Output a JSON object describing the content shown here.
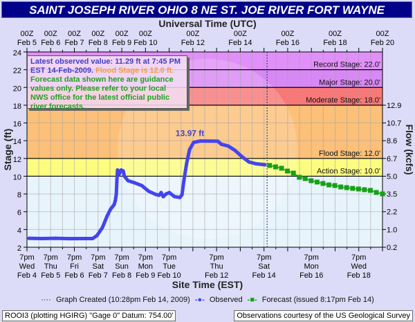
{
  "chart_data": {
    "type": "line",
    "title": "SAINT JOSEPH RIVER OHIO 8 NE ST. JOE RIVER FORT WAYNE",
    "top_axis_title": "Universal Time (UTC)",
    "xlabel": "Site Time (EST)",
    "ylabel": "Stage (ft)",
    "y2label": "Flow (kcfs)",
    "x_units": "days since 00Z Feb 5",
    "xlim": [
      0,
      15
    ],
    "ylim": [
      2,
      24
    ],
    "grid": true,
    "y_ticks": [
      2,
      4,
      6,
      8,
      10,
      12,
      14,
      16,
      18,
      20,
      22,
      24
    ],
    "y2_ticks": [
      {
        "stage": 2,
        "label": "0.2"
      },
      {
        "stage": 4,
        "label": "1.0"
      },
      {
        "stage": 6,
        "label": "2.2"
      },
      {
        "stage": 8,
        "label": "3.5"
      },
      {
        "stage": 10,
        "label": "5.0"
      },
      {
        "stage": 12,
        "label": "6.7"
      },
      {
        "stage": 14,
        "label": "8.6"
      },
      {
        "stage": 16,
        "label": "10.7"
      },
      {
        "stage": 18,
        "label": "12.9"
      }
    ],
    "top_ticks": [
      {
        "x": 0,
        "line1": "00Z",
        "line2": "Feb 5"
      },
      {
        "x": 1,
        "line1": "00Z",
        "line2": "Feb 6"
      },
      {
        "x": 2,
        "line1": "00Z",
        "line2": "Feb 7"
      },
      {
        "x": 3,
        "line1": "00Z",
        "line2": "Feb 8"
      },
      {
        "x": 4,
        "line1": "00Z",
        "line2": "Feb 9"
      },
      {
        "x": 5,
        "line1": "00Z",
        "line2": "Feb 10"
      },
      {
        "x": 7,
        "line1": "00Z",
        "line2": "Feb 12"
      },
      {
        "x": 9,
        "line1": "00Z",
        "line2": "Feb 14"
      },
      {
        "x": 11,
        "line1": "00Z",
        "line2": "Feb 16"
      },
      {
        "x": 13,
        "line1": "00Z",
        "line2": "Feb 18"
      },
      {
        "x": 15,
        "line1": "00Z",
        "line2": "Feb 20"
      }
    ],
    "bottom_ticks": [
      {
        "x": 0,
        "line1": "7pm",
        "line2": "Wed",
        "line3": "Feb 4"
      },
      {
        "x": 1,
        "line1": "7pm",
        "line2": "Thu",
        "line3": "Feb 5"
      },
      {
        "x": 2,
        "line1": "7pm",
        "line2": "Fri",
        "line3": "Feb 6"
      },
      {
        "x": 3,
        "line1": "7pm",
        "line2": "Sat",
        "line3": "Feb 7"
      },
      {
        "x": 4,
        "line1": "7pm",
        "line2": "Sun",
        "line3": "Feb 8"
      },
      {
        "x": 5,
        "line1": "7pm",
        "line2": "Mon",
        "line3": "Feb 9"
      },
      {
        "x": 6,
        "line1": "7pm",
        "line2": "Tue",
        "line3": "Feb 10"
      },
      {
        "x": 8,
        "line1": "7pm",
        "line2": "Thu",
        "line3": "Feb 12"
      },
      {
        "x": 10,
        "line1": "7pm",
        "line2": "Sat",
        "line3": "Feb 14"
      },
      {
        "x": 12,
        "line1": "7pm",
        "line2": "Mon",
        "line3": "Feb 16"
      },
      {
        "x": 14,
        "line1": "7pm",
        "line2": "Wed",
        "line3": "Feb 18"
      }
    ],
    "stage_bands": [
      {
        "name": "record",
        "from": 22,
        "to": 24,
        "color": "#e090f8",
        "label": "Record Stage: 22.0'",
        "line": 22
      },
      {
        "name": "major",
        "from": 20,
        "to": 22,
        "color": "#d888f4",
        "label": "Major Stage: 20.0'",
        "line": 20
      },
      {
        "name": "moderate",
        "from": 18,
        "to": 20,
        "color": "#f87878",
        "label": "Moderate Stage: 18.0'",
        "line": 18
      },
      {
        "name": "flood",
        "from": 12,
        "to": 18,
        "color": "#fcc078",
        "label": "Flood Stage: 12.0'",
        "line": 12
      },
      {
        "name": "action",
        "from": 10,
        "to": 12,
        "color": "#fcfc80",
        "label": "Action Stage: 10.0'",
        "line": 10
      },
      {
        "name": "normal",
        "from": 2,
        "to": 10,
        "color": "#e8f4fc",
        "label": "",
        "line": null
      }
    ],
    "graph_created_x": 10.13,
    "peak_label": {
      "text": "13.97 ft",
      "x": 7.05,
      "y": 13.97
    },
    "series": [
      {
        "name": "Observed",
        "color": "#4444ee",
        "points": [
          [
            0.09,
            3.0
          ],
          [
            0.61,
            2.98
          ],
          [
            1.2,
            3.0
          ],
          [
            1.78,
            2.97
          ],
          [
            2.36,
            2.98
          ],
          [
            2.77,
            2.98
          ],
          [
            2.95,
            3.3
          ],
          [
            3.18,
            4.2
          ],
          [
            3.38,
            5.5
          ],
          [
            3.53,
            6.3
          ],
          [
            3.68,
            6.8
          ],
          [
            3.73,
            7.3
          ],
          [
            3.77,
            8.0
          ],
          [
            3.79,
            9.3
          ],
          [
            3.82,
            10.7
          ],
          [
            3.88,
            10.2
          ],
          [
            3.97,
            10.7
          ],
          [
            4.06,
            10.6
          ],
          [
            4.11,
            10.0
          ],
          [
            4.26,
            9.5
          ],
          [
            4.55,
            9.25
          ],
          [
            4.84,
            8.95
          ],
          [
            5.14,
            8.3
          ],
          [
            5.43,
            7.95
          ],
          [
            5.57,
            7.85
          ],
          [
            5.66,
            8.15
          ],
          [
            5.75,
            7.7
          ],
          [
            5.87,
            8.0
          ],
          [
            6.01,
            8.15
          ],
          [
            6.22,
            7.7
          ],
          [
            6.45,
            7.6
          ],
          [
            6.54,
            7.9
          ],
          [
            6.62,
            9.5
          ],
          [
            6.74,
            11.5
          ],
          [
            6.86,
            13.0
          ],
          [
            7.03,
            13.8
          ],
          [
            7.32,
            13.97
          ],
          [
            8.05,
            13.95
          ],
          [
            8.2,
            13.6
          ],
          [
            8.49,
            13.4
          ],
          [
            8.78,
            12.9
          ],
          [
            9.07,
            12.2
          ],
          [
            9.37,
            11.6
          ],
          [
            9.66,
            11.4
          ],
          [
            10.04,
            11.29
          ]
        ]
      },
      {
        "name": "Forecast",
        "color": "#18a018",
        "points": [
          [
            10.24,
            11.21
          ],
          [
            10.49,
            11.05
          ],
          [
            10.74,
            10.9
          ],
          [
            10.99,
            10.58
          ],
          [
            11.24,
            10.35
          ],
          [
            11.49,
            9.88
          ],
          [
            11.74,
            9.73
          ],
          [
            11.99,
            9.49
          ],
          [
            12.24,
            9.34
          ],
          [
            12.49,
            9.18
          ],
          [
            12.74,
            9.02
          ],
          [
            12.99,
            8.95
          ],
          [
            13.24,
            8.79
          ],
          [
            13.49,
            8.71
          ],
          [
            13.74,
            8.63
          ],
          [
            13.99,
            8.56
          ],
          [
            14.24,
            8.48
          ],
          [
            14.49,
            8.4
          ],
          [
            14.74,
            8.17
          ],
          [
            15.0,
            8.01
          ]
        ]
      }
    ],
    "legend": {
      "placement": "bottom",
      "graph_created": "Graph Created (10:28pm Feb 14, 2009)",
      "observed": "Observed",
      "forecast": "Forecast (issued 8:17pm Feb 14)"
    }
  },
  "header": {
    "title": "SAINT JOSEPH RIVER OHIO 8 NE ST. JOE RIVER FORT WAYNE"
  },
  "info_box": {
    "latest": "Latest observed value: 11.29 ft at 7:45 PM EST 14-Feb-2009.",
    "flood": "Flood Stage is 12.0 ft.",
    "disclaimer": "Forecast data shown here are guidance values only. Please refer to your local NWS office for the latest official public river forecasts."
  },
  "footer": {
    "left": "ROOI3 (plotting HGIRG)  \"Gage 0\" Datum: 754.00'",
    "right": "Observations courtesy of the  US Geological Survey"
  }
}
